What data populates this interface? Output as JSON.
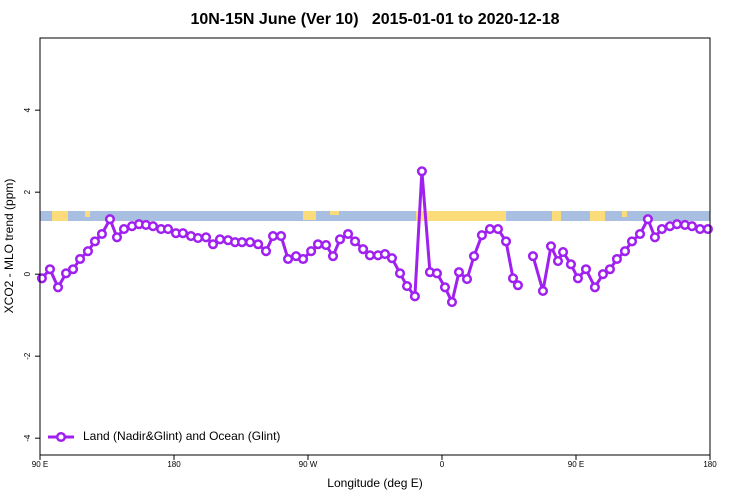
{
  "chart_data": {
    "type": "line",
    "title": "10N-15N June (Ver 10)   2015-01-01 to 2020-12-18",
    "xlabel": "Longitude (deg E)",
    "ylabel": "XCO2 - MLO trend (ppm)",
    "xlim": [
      90,
      540
    ],
    "ylim": [
      -4.41,
      5.76
    ],
    "xticks": [
      {
        "value": 90,
        "label": "90 E"
      },
      180,
      {
        "value": 270,
        "label": "90 W"
      },
      {
        "value": 360,
        "label": "0"
      },
      {
        "value": 450,
        "label": "90 E"
      },
      {
        "value": 540,
        "label": "180"
      }
    ],
    "yticks": [
      -4,
      -2,
      0,
      2,
      4
    ],
    "legend": "bottom-left",
    "series": [
      {
        "name": "Land (Nadir&Glint) and Ocean (Glint)",
        "color": "#a020f0",
        "x": [
          91.3,
          96.7,
          102.1,
          107.5,
          112.2,
          116.9,
          122.2,
          126.9,
          131.6,
          137.0,
          141.7,
          146.4,
          151.8,
          156.5,
          161.2,
          165.9,
          171.3,
          176.0,
          181.3,
          186.0,
          191.4,
          196.1,
          201.5,
          206.2,
          210.9,
          216.3,
          221.0,
          225.7,
          231.1,
          236.5,
          241.8,
          246.5,
          251.9,
          256.6,
          262.0,
          266.7,
          272.1,
          276.7,
          282.1,
          286.8,
          291.5,
          296.9,
          301.6,
          307.0,
          311.6,
          317.0,
          321.7,
          326.4,
          331.8,
          336.5,
          341.8,
          346.5,
          351.9,
          356.6,
          362.0,
          366.7,
          371.4,
          376.8,
          381.5,
          386.8,
          392.2,
          397.6,
          403.0,
          407.7,
          411.0,
          416.0,
          421.1,
          427.8,
          433.2,
          437.9,
          441.3,
          446.6,
          451.3,
          456.7,
          462.7,
          468.1,
          472.8,
          477.5,
          482.9,
          487.6,
          493.0,
          498.3,
          503.0,
          507.7,
          513.1,
          517.8,
          523.2,
          527.9,
          533.3,
          538.6
        ],
        "values": [
          -0.1,
          0.12,
          -0.32,
          0.02,
          0.12,
          0.37,
          0.56,
          0.8,
          0.98,
          1.34,
          0.9,
          1.1,
          1.17,
          1.22,
          1.2,
          1.17,
          1.1,
          1.1,
          1.0,
          1.0,
          0.93,
          0.88,
          0.9,
          0.73,
          0.85,
          0.83,
          0.78,
          0.78,
          0.78,
          0.73,
          0.56,
          0.93,
          0.93,
          0.37,
          0.44,
          0.37,
          0.56,
          0.73,
          0.71,
          0.44,
          0.85,
          0.98,
          0.8,
          0.61,
          0.46,
          0.46,
          0.49,
          0.39,
          0.02,
          -0.29,
          -0.54,
          2.51,
          0.05,
          0.02,
          -0.32,
          -0.68,
          0.05,
          -0.12,
          0.44,
          0.95,
          1.1,
          1.1,
          0.8,
          -0.1,
          -0.27,
          null,
          0.44,
          -0.41,
          0.68,
          0.32,
          0.54,
          0.24,
          -0.1,
          0.12,
          -0.32,
          0,
          0.12,
          0.37,
          0.56,
          0.8,
          0.98,
          1.34,
          0.9,
          1.1,
          1.17,
          1.22,
          1.2,
          1.17,
          1.1,
          1.1
        ]
      }
    ]
  }
}
